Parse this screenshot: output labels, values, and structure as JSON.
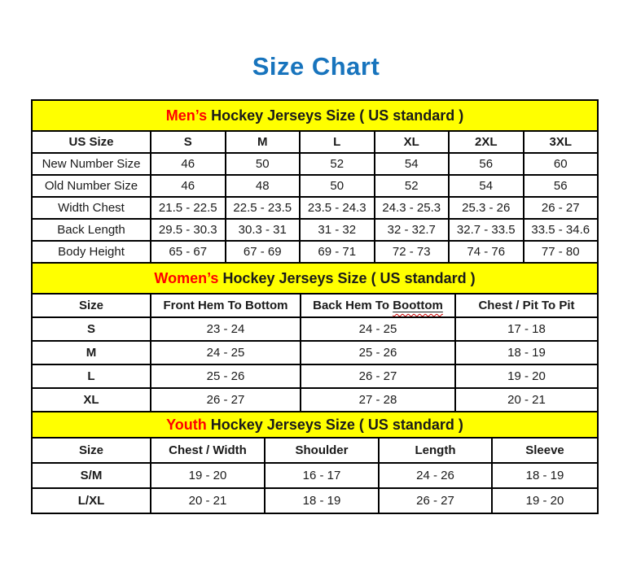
{
  "title": "Size Chart",
  "colors": {
    "title": "#1874bd",
    "section_band": "#ffff00",
    "accent_red": "#ff0000",
    "border": "#000000",
    "text": "#1a1a1a"
  },
  "chart_data": [
    {
      "type": "table",
      "title": "Men’s Hockey Jerseys Size ( US standard )",
      "title_accent": "Men’s",
      "title_rest": " Hockey Jerseys Size ( US standard )",
      "columns": [
        {
          "label": "US Size"
        },
        {
          "label": "S"
        },
        {
          "label": "M"
        },
        {
          "label": "L"
        },
        {
          "label": "XL"
        },
        {
          "label": "2XL"
        },
        {
          "label": "3XL"
        }
      ],
      "rows": [
        {
          "label": "New Number Size",
          "bold_label": false,
          "values": [
            "46",
            "50",
            "52",
            "54",
            "56",
            "60"
          ]
        },
        {
          "label": "Old Number Size",
          "bold_label": false,
          "values": [
            "46",
            "48",
            "50",
            "52",
            "54",
            "56"
          ]
        },
        {
          "label": "Width Chest",
          "bold_label": false,
          "values": [
            "21.5 - 22.5",
            "22.5 - 23.5",
            "23.5 - 24.3",
            "24.3 - 25.3",
            "25.3 - 26",
            "26 - 27"
          ]
        },
        {
          "label": "Back Length",
          "bold_label": false,
          "values": [
            "29.5 - 30.3",
            "30.3 - 31",
            "31 - 32",
            "32 - 32.7",
            "32.7 - 33.5",
            "33.5 - 34.6"
          ]
        },
        {
          "label": "Body Height",
          "bold_label": false,
          "values": [
            "65 - 67",
            "67 - 69",
            "69 - 71",
            "72 - 73",
            "74 - 76",
            "77 - 80"
          ]
        }
      ]
    },
    {
      "type": "table",
      "title": "Women’s Hockey Jerseys Size ( US standard )",
      "title_accent": "Women’s",
      "title_rest": " Hockey Jerseys Size ( US standard )",
      "columns": [
        {
          "label": "Size"
        },
        {
          "label": "Front Hem To Bottom"
        },
        {
          "label": "Back Hem To Boottom",
          "underlined_word": "Boottom"
        },
        {
          "label": "Chest / Pit To Pit"
        }
      ],
      "rows": [
        {
          "label": "S",
          "bold_label": true,
          "values": [
            "23 - 24",
            "24 - 25",
            "17 - 18"
          ]
        },
        {
          "label": "M",
          "bold_label": true,
          "values": [
            "24 - 25",
            "25 - 26",
            "18 - 19"
          ]
        },
        {
          "label": "L",
          "bold_label": true,
          "values": [
            "25 - 26",
            "26 - 27",
            "19 - 20"
          ]
        },
        {
          "label": "XL",
          "bold_label": true,
          "values": [
            "26 - 27",
            "27 - 28",
            "20 - 21"
          ]
        }
      ]
    },
    {
      "type": "table",
      "title": "Youth Hockey Jerseys Size ( US standard )",
      "title_accent": "Youth",
      "title_rest": " Hockey Jerseys Size ( US standard )",
      "columns": [
        {
          "label": "Size"
        },
        {
          "label": "Chest / Width"
        },
        {
          "label": "Shoulder"
        },
        {
          "label": "Length"
        },
        {
          "label": "Sleeve"
        }
      ],
      "rows": [
        {
          "label": "S/M",
          "bold_label": true,
          "values": [
            "19 - 20",
            "16 - 17",
            "24 - 26",
            "18 - 19"
          ]
        },
        {
          "label": "L/XL",
          "bold_label": true,
          "values": [
            "20 - 21",
            "18 - 19",
            "26 - 27",
            "19 - 20"
          ]
        }
      ]
    }
  ]
}
